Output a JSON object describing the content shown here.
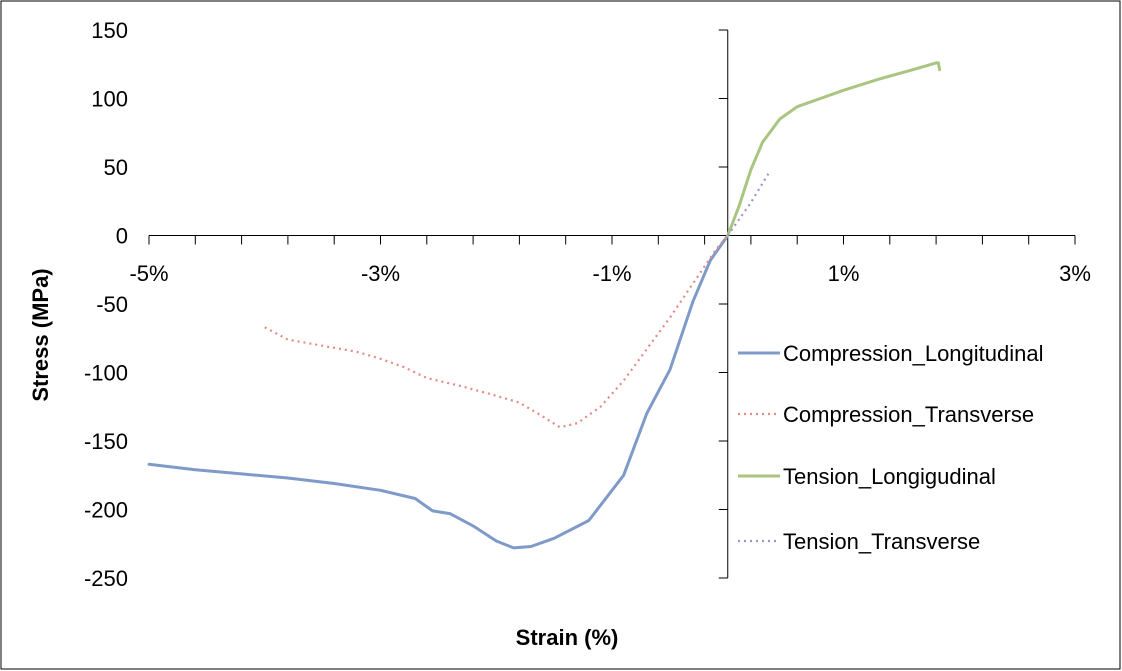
{
  "chart_data": {
    "type": "line",
    "xlabel": "Strain (%)",
    "ylabel": "Stress (MPa)",
    "xlim": [
      -5,
      3
    ],
    "ylim": [
      -250,
      150
    ],
    "x_ticks": [
      -5,
      -3,
      -1,
      1,
      3
    ],
    "x_tick_labels": [
      "-5%",
      "-3%",
      "-1%",
      "1%",
      "3%"
    ],
    "y_ticks": [
      150,
      100,
      50,
      0,
      -50,
      -100,
      -150,
      -200,
      -250
    ],
    "y_tick_labels": [
      "150",
      "100",
      "50",
      "0",
      "-50",
      "-100",
      "-150",
      "-200",
      "-250"
    ],
    "grid": false,
    "legend_position": "right",
    "series": [
      {
        "name": "Compression_Longitudinal",
        "color": "#7f9ac8",
        "dash": "solid",
        "x": [
          -5.0,
          -4.6,
          -4.2,
          -3.8,
          -3.4,
          -3.0,
          -2.7,
          -2.55,
          -2.4,
          -2.2,
          -2.0,
          -1.85,
          -1.7,
          -1.5,
          -1.2,
          -0.9,
          -0.7,
          -0.5,
          -0.3,
          -0.15,
          0.0
        ],
        "y": [
          -167,
          -171,
          -174,
          -177,
          -181,
          -186,
          -192,
          -201,
          -203,
          -212,
          -223,
          -228,
          -227,
          -221,
          -208,
          -175,
          -130,
          -98,
          -48,
          -18,
          0
        ]
      },
      {
        "name": "Compression_Transverse",
        "color": "#e38b84",
        "dash": "dotted",
        "x": [
          -4.0,
          -3.8,
          -3.6,
          -3.4,
          -3.2,
          -3.0,
          -2.8,
          -2.6,
          -2.3,
          -2.0,
          -1.8,
          -1.6,
          -1.45,
          -1.3,
          -1.1,
          -0.9,
          -0.7,
          -0.5,
          -0.3,
          -0.1,
          0.0
        ],
        "y": [
          -67,
          -76,
          -79,
          -82,
          -85,
          -90,
          -96,
          -104,
          -110,
          -117,
          -122,
          -132,
          -140,
          -137,
          -125,
          -106,
          -83,
          -60,
          -35,
          -10,
          0
        ]
      },
      {
        "name": "Tension_Longigudinal",
        "color": "#a9c57f",
        "dash": "solid",
        "x": [
          0.0,
          0.1,
          0.2,
          0.3,
          0.45,
          0.6,
          0.8,
          1.0,
          1.3,
          1.6,
          1.8,
          1.82,
          1.83
        ],
        "y": [
          0,
          22,
          48,
          68,
          85,
          94,
          100,
          106,
          114,
          121,
          126,
          126,
          121
        ]
      },
      {
        "name": "Tension_Transverse",
        "color": "#9c94c6",
        "dash": "dotted",
        "x": [
          0.0,
          0.1,
          0.2,
          0.3,
          0.35
        ],
        "y": [
          0,
          12,
          24,
          38,
          45
        ]
      }
    ]
  }
}
